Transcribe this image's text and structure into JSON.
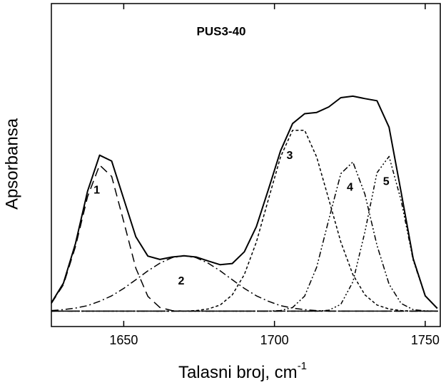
{
  "chart_data": {
    "type": "line",
    "title": "PUS3-40",
    "x_label": "Talasni broj, cm",
    "x_label_sup": "-1",
    "y_label": "Apsorbansa",
    "x": [
      1626,
      1630,
      1634,
      1638,
      1642,
      1646,
      1650,
      1654,
      1658,
      1662,
      1666,
      1670,
      1674,
      1678,
      1682,
      1686,
      1690,
      1694,
      1698,
      1702,
      1706,
      1710,
      1714,
      1718,
      1722,
      1726,
      1730,
      1734,
      1738,
      1742,
      1746,
      1750,
      1754
    ],
    "series": [
      {
        "color": "#000000",
        "dash": "none",
        "width": 2,
        "values": [
          0.027,
          0.091,
          0.22,
          0.39,
          0.507,
          0.488,
          0.365,
          0.242,
          0.179,
          0.168,
          0.176,
          0.18,
          0.176,
          0.163,
          0.151,
          0.155,
          0.193,
          0.275,
          0.396,
          0.521,
          0.61,
          0.642,
          0.646,
          0.664,
          0.694,
          0.699,
          0.691,
          0.684,
          0.598,
          0.387,
          0.171,
          0.05,
          0.009
        ]
      },
      {
        "name": "1",
        "color": "#000000",
        "dash": "12,7",
        "width": 1.5,
        "values": [
          0.025,
          0.086,
          0.21,
          0.372,
          0.475,
          0.438,
          0.291,
          0.14,
          0.048,
          0.012,
          0.002,
          0,
          0,
          0,
          0,
          0,
          0,
          0,
          0,
          0,
          0,
          0,
          0,
          0,
          0,
          0,
          0,
          0,
          0,
          0,
          0,
          0,
          0
        ]
      },
      {
        "name": "2",
        "color": "#000000",
        "dash": "10,4,2,4",
        "width": 1.5,
        "values": [
          0.002,
          0.005,
          0.01,
          0.018,
          0.032,
          0.05,
          0.074,
          0.102,
          0.131,
          0.156,
          0.174,
          0.18,
          0.174,
          0.156,
          0.131,
          0.102,
          0.074,
          0.05,
          0.032,
          0.018,
          0.01,
          0.005,
          0.002,
          0,
          0,
          0,
          0,
          0,
          0,
          0,
          0,
          0,
          0
        ]
      },
      {
        "name": "3",
        "color": "#000000",
        "dash": "4,3",
        "width": 1.5,
        "values": [
          0,
          0,
          0,
          0,
          0,
          0,
          0,
          0,
          0,
          0,
          0,
          0,
          0.002,
          0.007,
          0.02,
          0.053,
          0.119,
          0.225,
          0.364,
          0.501,
          0.588,
          0.588,
          0.501,
          0.364,
          0.225,
          0.119,
          0.053,
          0.02,
          0.007,
          0.002,
          0,
          0,
          0
        ]
      },
      {
        "name": "4",
        "color": "#000000",
        "dash": "8,3,2,3,2,3",
        "width": 1.5,
        "values": [
          0,
          0,
          0,
          0,
          0,
          0,
          0,
          0,
          0,
          0,
          0,
          0,
          0,
          0,
          0,
          0,
          0,
          0,
          0,
          0.002,
          0.012,
          0.049,
          0.143,
          0.297,
          0.447,
          0.485,
          0.38,
          0.214,
          0.088,
          0.025,
          0.005,
          0.001,
          0
        ]
      },
      {
        "name": "5",
        "color": "#000000",
        "dash": "6,3,2,3,2,3,2,3",
        "width": 1.5,
        "values": [
          0,
          0,
          0,
          0,
          0,
          0,
          0,
          0,
          0,
          0,
          0,
          0,
          0,
          0,
          0,
          0,
          0,
          0,
          0,
          0,
          0,
          0,
          0,
          0.003,
          0.022,
          0.095,
          0.258,
          0.45,
          0.503,
          0.36,
          0.166,
          0.049,
          0.009
        ]
      }
    ],
    "baseline": 0,
    "xlim": [
      1626,
      1755
    ],
    "xticks": [
      1650,
      1700,
      1750
    ],
    "ylim": [
      -0.05,
      1
    ]
  }
}
